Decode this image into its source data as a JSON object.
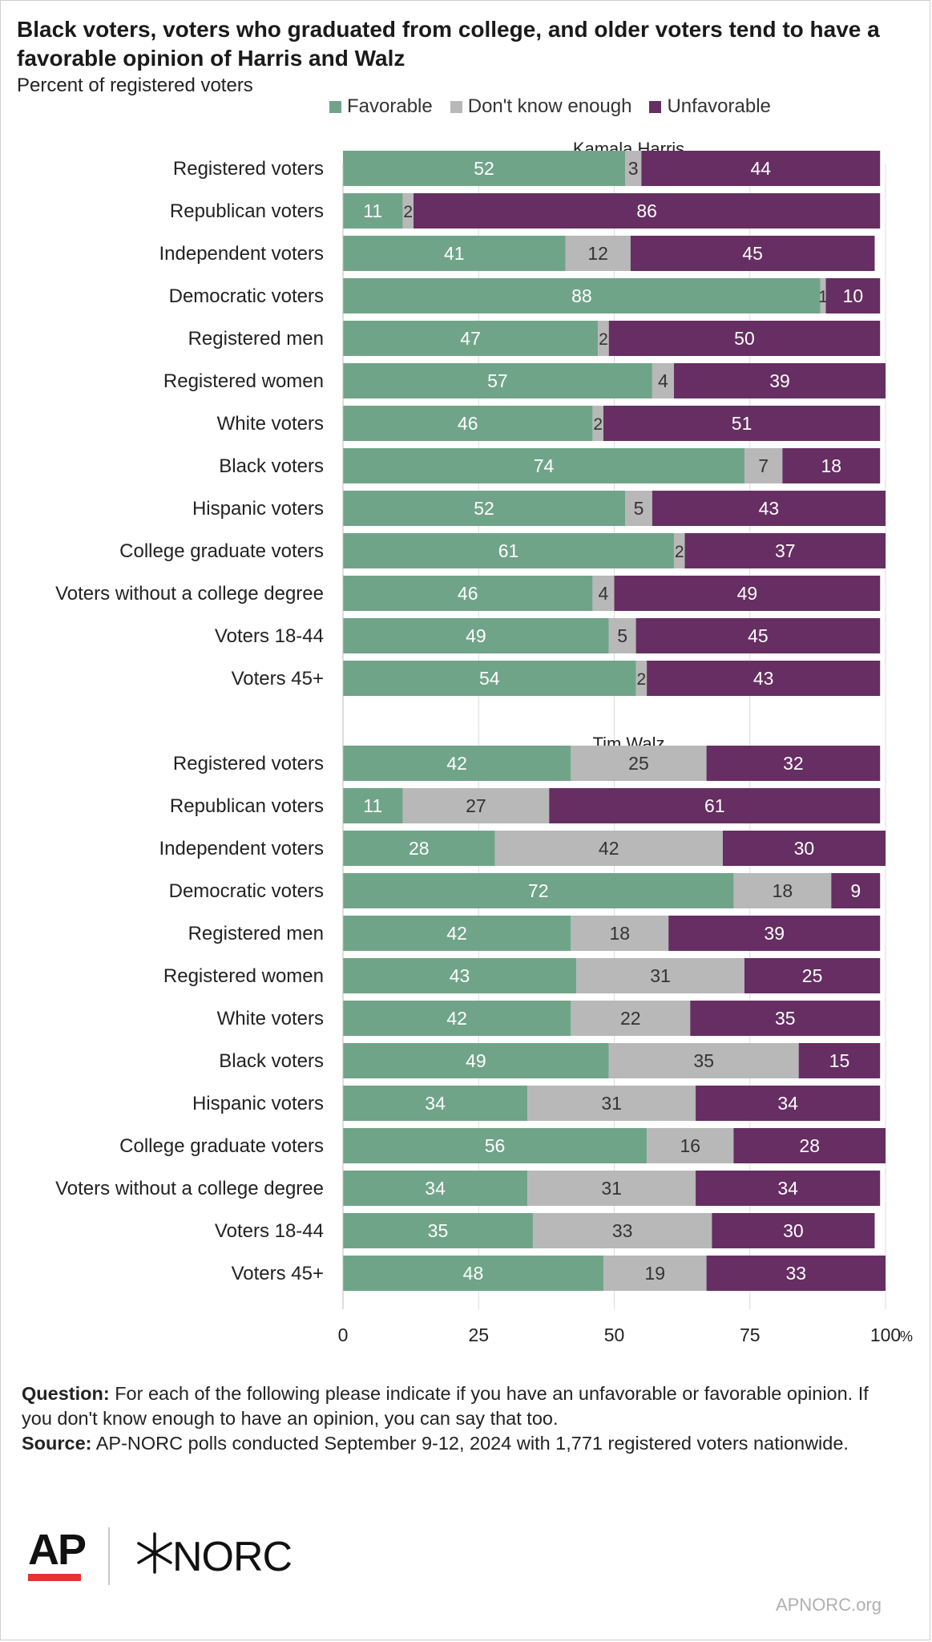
{
  "header": {
    "title": "Black voters, voters who graduated from college, and older voters tend to have a favorable opinion of Harris and Walz",
    "subtitle": "Percent of registered voters"
  },
  "legend": [
    {
      "label": "Favorable",
      "color": "#70a488"
    },
    {
      "label": "Don't know enough",
      "color": "#b8b8b8"
    },
    {
      "label": "Unfavorable",
      "color": "#662e62"
    }
  ],
  "chart_data": {
    "type": "bar",
    "orientation": "horizontal",
    "stacked": true,
    "xlim": [
      0,
      100
    ],
    "x_ticks": [
      "0",
      "25",
      "50",
      "75",
      "100"
    ],
    "x_unit": "%",
    "grid": true,
    "legend_position": "top",
    "series_names": [
      "Favorable",
      "Don't know enough",
      "Unfavorable"
    ],
    "panels": [
      {
        "title": "Kamala Harris",
        "rows": [
          {
            "label": "Registered voters",
            "values": [
              52,
              3,
              44
            ]
          },
          {
            "label": "Republican voters",
            "values": [
              11,
              2,
              86
            ]
          },
          {
            "label": "Independent voters",
            "values": [
              41,
              12,
              45
            ]
          },
          {
            "label": "Democratic voters",
            "values": [
              88,
              1,
              10
            ]
          },
          {
            "label": "Registered men",
            "values": [
              47,
              2,
              50
            ]
          },
          {
            "label": "Registered women",
            "values": [
              57,
              4,
              39
            ]
          },
          {
            "label": "White voters",
            "values": [
              46,
              2,
              51
            ]
          },
          {
            "label": "Black voters",
            "values": [
              74,
              7,
              18
            ]
          },
          {
            "label": "Hispanic voters",
            "values": [
              52,
              5,
              43
            ]
          },
          {
            "label": "College graduate voters",
            "values": [
              61,
              2,
              37
            ]
          },
          {
            "label": "Voters without a college degree",
            "values": [
              46,
              4,
              49
            ]
          },
          {
            "label": "Voters 18-44",
            "values": [
              49,
              5,
              45
            ]
          },
          {
            "label": "Voters  45+",
            "values": [
              54,
              2,
              43
            ]
          }
        ]
      },
      {
        "title": "Tim Walz",
        "rows": [
          {
            "label": "Registered voters",
            "values": [
              42,
              25,
              32
            ]
          },
          {
            "label": "Republican voters",
            "values": [
              11,
              27,
              61
            ]
          },
          {
            "label": "Independent voters",
            "values": [
              28,
              42,
              30
            ]
          },
          {
            "label": "Democratic voters",
            "values": [
              72,
              18,
              9
            ]
          },
          {
            "label": "Registered men",
            "values": [
              42,
              18,
              39
            ]
          },
          {
            "label": "Registered women",
            "values": [
              43,
              31,
              25
            ]
          },
          {
            "label": "White voters",
            "values": [
              42,
              22,
              35
            ]
          },
          {
            "label": "Black voters",
            "values": [
              49,
              35,
              15
            ]
          },
          {
            "label": "Hispanic voters",
            "values": [
              34,
              31,
              34
            ]
          },
          {
            "label": "College graduate voters",
            "values": [
              56,
              16,
              28
            ]
          },
          {
            "label": "Voters without a college degree",
            "values": [
              34,
              31,
              34
            ]
          },
          {
            "label": "Voters 18-44",
            "values": [
              35,
              33,
              30
            ]
          },
          {
            "label": "Voters  45+",
            "values": [
              48,
              19,
              33
            ]
          }
        ]
      }
    ]
  },
  "footer": {
    "question_label": "Question:",
    "question_text": " For each of the following please indicate if you have an unfavorable or favorable opinion. If you don't know enough to have an opinion, you can say that too.",
    "source_label": "Source:",
    "source_text": " AP-NORC polls conducted September 9-12, 2024 with 1,771 registered voters nationwide."
  },
  "branding": {
    "ap_logo": "AP",
    "norc_logo": "NORC",
    "site": "APNORC.org"
  }
}
